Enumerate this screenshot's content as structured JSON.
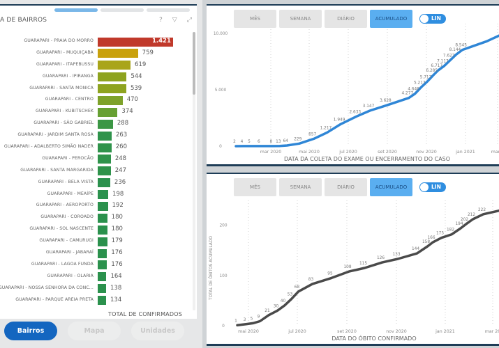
{
  "left_panel": {
    "title": "A DE BAIRROS",
    "footer_label": "TOTAL DE CONFIRMADOS",
    "icons": [
      "help-icon",
      "filter-icon",
      "expand-icon"
    ],
    "rows": [
      {
        "label": "GUARAPARI - PRAIA DO MORRO",
        "value": 1421,
        "display": "1.421",
        "color": "#c0392b"
      },
      {
        "label": "GUARAPARI - MUQUIÇABA",
        "value": 759,
        "display": "759",
        "color": "#c9a10d"
      },
      {
        "label": "GUARAPARI - ITAPEBUSSU",
        "value": 619,
        "display": "619",
        "color": "#a9a51a"
      },
      {
        "label": "GUARAPARI - IPIRANGA",
        "value": 544,
        "display": "544",
        "color": "#8ea31f"
      },
      {
        "label": "GUARAPARI - SANTA MONICA",
        "value": 539,
        "display": "539",
        "color": "#8ea31f"
      },
      {
        "label": "GUARAPARI - CENTRO",
        "value": 470,
        "display": "470",
        "color": "#7ea22a"
      },
      {
        "label": "GUARAPARI - KUBITSCHEK",
        "value": 374,
        "display": "374",
        "color": "#67a033"
      },
      {
        "label": "GUARAPARI - SÃO GABRIEL",
        "value": 288,
        "display": "288",
        "color": "#3c9745"
      },
      {
        "label": "GUARAPARI - JARDIM SANTA ROSA",
        "value": 263,
        "display": "263",
        "color": "#2f934b"
      },
      {
        "label": "GUARAPARI - ADALBERTO SIMÃO NADER",
        "value": 260,
        "display": "260",
        "color": "#2f934b"
      },
      {
        "label": "GUARAPARI - PEROCÃO",
        "value": 248,
        "display": "248",
        "color": "#2f934b"
      },
      {
        "label": "GUARAPARI - SANTA MARGARIDA",
        "value": 247,
        "display": "247",
        "color": "#2f934b"
      },
      {
        "label": "GUARAPARI - BELA VISTA",
        "value": 236,
        "display": "236",
        "color": "#2b914d"
      },
      {
        "label": "GUARAPARI - MEAÍPE",
        "value": 198,
        "display": "198",
        "color": "#2b914d"
      },
      {
        "label": "GUARAPARI - AEROPORTO",
        "value": 192,
        "display": "192",
        "color": "#2b914d"
      },
      {
        "label": "GUARAPARI - COROADO",
        "value": 180,
        "display": "180",
        "color": "#2b914d"
      },
      {
        "label": "GUARAPARI - SOL NASCENTE",
        "value": 180,
        "display": "180",
        "color": "#2b914d"
      },
      {
        "label": "GUARAPARI - CAMURUGI",
        "value": 179,
        "display": "179",
        "color": "#2b914d"
      },
      {
        "label": "GUARAPARI - JABARAÍ",
        "value": 176,
        "display": "176",
        "color": "#2b914d"
      },
      {
        "label": "GUARAPARI - LAGOA FUNDA",
        "value": 176,
        "display": "176",
        "color": "#2b914d"
      },
      {
        "label": "GUARAPARI - OLARIA",
        "value": 164,
        "display": "164",
        "color": "#2b914d"
      },
      {
        "label": "GUARAPARI - NOSSA SENHORA DA CONC...",
        "value": 138,
        "display": "138",
        "color": "#2b914d"
      },
      {
        "label": "GUARAPARI - PARQUE AREIA PRETA",
        "value": 134,
        "display": "134",
        "color": "#2b914d"
      }
    ]
  },
  "nav_buttons": [
    {
      "label": "Bairros",
      "active": true
    },
    {
      "label": "Mapa",
      "active": false
    },
    {
      "label": "Unidades",
      "active": false
    }
  ],
  "chart_controls": {
    "segments": [
      "MÊS",
      "SEMANA",
      "DIÁRIO",
      "ACUMULADO"
    ],
    "active_segment": "ACUMULADO",
    "toggle_label": "LIN"
  },
  "chart_data": [
    {
      "type": "line",
      "title": "",
      "xlabel": "DATA DA COLETA DO EXAME OU ENCERRAMENTO DO CASO",
      "ylabel": "",
      "color": "#2f86d6",
      "ylim": [
        0,
        10000
      ],
      "yticks": [
        {
          "v": 0,
          "label": "0"
        },
        {
          "v": 5000,
          "label": "5.000"
        },
        {
          "v": 10000,
          "label": "10.000"
        }
      ],
      "xticks": [
        "mar 2020",
        "mai 2020",
        "jul 2020",
        "set 2020",
        "nov 2020",
        "jan 2021",
        "mar 2"
      ],
      "points": [
        {
          "x": 0.0,
          "y": 2,
          "label": "2"
        },
        {
          "x": 0.3,
          "y": 4,
          "label": "4"
        },
        {
          "x": 0.6,
          "y": 5,
          "label": "5"
        },
        {
          "x": 1.0,
          "y": 6,
          "label": "6"
        },
        {
          "x": 1.5,
          "y": 8,
          "label": "8"
        },
        {
          "x": 1.8,
          "y": 13,
          "label": "13"
        },
        {
          "x": 2.1,
          "y": 64,
          "label": "64"
        },
        {
          "x": 2.6,
          "y": 229,
          "label": "229"
        },
        {
          "x": 3.2,
          "y": 657,
          "label": "657"
        },
        {
          "x": 3.75,
          "y": 1217,
          "label": "1.217"
        },
        {
          "x": 4.3,
          "y": 1949,
          "label": "1.949"
        },
        {
          "x": 4.95,
          "y": 2633,
          "label": "2.633"
        },
        {
          "x": 5.5,
          "y": 3147,
          "label": "3.147"
        },
        {
          "x": 6.2,
          "y": 3628,
          "label": "3.628"
        },
        {
          "x": 7.1,
          "y": 4277,
          "label": "4.277"
        },
        {
          "x": 7.35,
          "y": 4646,
          "label": "4.646"
        },
        {
          "x": 7.6,
          "y": 5217,
          "label": "5.217"
        },
        {
          "x": 7.85,
          "y": 5717,
          "label": "5.717"
        },
        {
          "x": 8.1,
          "y": 6285,
          "label": "6.285"
        },
        {
          "x": 8.3,
          "y": 6717,
          "label": "6.717"
        },
        {
          "x": 8.55,
          "y": 7117,
          "label": "7.117"
        },
        {
          "x": 8.8,
          "y": 7627,
          "label": "7.627"
        },
        {
          "x": 9.05,
          "y": 8144,
          "label": "8.144"
        },
        {
          "x": 9.3,
          "y": 8545,
          "label": "8.545"
        },
        {
          "x": 10.3,
          "y": 9300,
          "label": ""
        },
        {
          "x": 10.8,
          "y": 9800,
          "label": ""
        }
      ]
    },
    {
      "type": "line",
      "title": "",
      "xlabel": "DATA DO ÓBITO CONFIRMADO",
      "ylabel": "TOTAL DE ÓBITOS ACUMULADO",
      "color": "#4a4a4a",
      "ylim": [
        0,
        230
      ],
      "yticks": [
        {
          "v": 0,
          "label": "0"
        },
        {
          "v": 100,
          "label": "100"
        },
        {
          "v": 200,
          "label": "200"
        }
      ],
      "xticks": [
        "mai 2020",
        "jul 2020",
        "set 2020",
        "nov 2020",
        "jan 2021",
        "mar 20"
      ],
      "points": [
        {
          "x": 0.0,
          "y": 1,
          "label": "1"
        },
        {
          "x": 0.25,
          "y": 3,
          "label": "3"
        },
        {
          "x": 0.45,
          "y": 5,
          "label": "5"
        },
        {
          "x": 0.65,
          "y": 9,
          "label": "9"
        },
        {
          "x": 0.9,
          "y": 21,
          "label": "21"
        },
        {
          "x": 1.15,
          "y": 30,
          "label": "30"
        },
        {
          "x": 1.35,
          "y": 40,
          "label": "40"
        },
        {
          "x": 1.55,
          "y": 53,
          "label": "53"
        },
        {
          "x": 1.75,
          "y": 68,
          "label": "68"
        },
        {
          "x": 2.15,
          "y": 83,
          "label": "83"
        },
        {
          "x": 2.7,
          "y": 95,
          "label": "95"
        },
        {
          "x": 3.2,
          "y": 108,
          "label": "108"
        },
        {
          "x": 3.65,
          "y": 115,
          "label": "115"
        },
        {
          "x": 4.15,
          "y": 126,
          "label": "126"
        },
        {
          "x": 4.6,
          "y": 133,
          "label": "133"
        },
        {
          "x": 5.15,
          "y": 144,
          "label": "144"
        },
        {
          "x": 5.45,
          "y": 158,
          "label": "158"
        },
        {
          "x": 5.6,
          "y": 166,
          "label": "166"
        },
        {
          "x": 5.85,
          "y": 175,
          "label": "175"
        },
        {
          "x": 6.15,
          "y": 182,
          "label": "182"
        },
        {
          "x": 6.4,
          "y": 194,
          "label": "194"
        },
        {
          "x": 6.55,
          "y": 202,
          "label": "202"
        },
        {
          "x": 6.75,
          "y": 212,
          "label": "212"
        },
        {
          "x": 7.05,
          "y": 222,
          "label": "222"
        },
        {
          "x": 7.5,
          "y": 229,
          "label": ""
        }
      ]
    }
  ]
}
